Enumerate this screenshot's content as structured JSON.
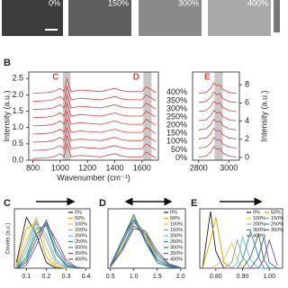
{
  "images": [
    {
      "label": "0%"
    },
    {
      "label": "150%"
    },
    {
      "label": "300%"
    },
    {
      "label": "400%"
    }
  ],
  "panel_labels": [
    "B",
    "C",
    "D",
    "E"
  ],
  "chart_data": [
    {
      "type": "line",
      "x_label": "Wavenumber (cm⁻¹)",
      "y_label": "Intensity (a.u.)",
      "x": [
        800,
        900,
        950,
        1000,
        1030,
        1050,
        1080,
        1150,
        1200,
        1300,
        1400,
        1450,
        1500,
        1600,
        1630,
        1650,
        1700
      ],
      "xlim": [
        770,
        1720
      ],
      "xticks": [
        800,
        1000,
        1200,
        1400,
        1600
      ],
      "ylim": [
        0,
        2.7
      ],
      "yticks": [
        {
          "value": 0,
          "label": "0.0"
        },
        0.5,
        {
          "value": 1,
          "label": "1.0"
        },
        1.5,
        {
          "value": 2,
          "label": "2.0"
        },
        2.5
      ],
      "highlights": [
        {
          "label": "C",
          "from": 1020,
          "to": 1075
        },
        {
          "label": "D",
          "from": 1610,
          "to": 1670
        }
      ],
      "series": [
        {
          "name": "0%",
          "color": "#e0403a",
          "values": [
            0.05,
            0.07,
            0.1,
            0.2,
            0.1,
            0.5,
            0.1,
            0.15,
            0.13,
            0.1,
            0.2,
            0.13,
            0.1,
            0.1,
            0.25,
            0.2,
            0.07
          ]
        },
        {
          "name": "50%",
          "color": "#e0403a",
          "values": [
            0.3,
            0.32,
            0.35,
            0.45,
            0.35,
            0.75,
            0.35,
            0.4,
            0.38,
            0.35,
            0.45,
            0.38,
            0.35,
            0.35,
            0.5,
            0.45,
            0.32
          ]
        },
        {
          "name": "100%",
          "color": "#e0403a",
          "values": [
            0.55,
            0.57,
            0.6,
            0.7,
            0.6,
            1.0,
            0.6,
            0.65,
            0.63,
            0.6,
            0.7,
            0.63,
            0.6,
            0.6,
            0.75,
            0.7,
            0.57
          ]
        },
        {
          "name": "150%",
          "color": "#e0403a",
          "values": [
            0.8,
            0.82,
            0.85,
            0.95,
            0.85,
            1.25,
            0.85,
            0.9,
            0.88,
            0.85,
            0.95,
            0.88,
            0.85,
            0.85,
            1.0,
            0.95,
            0.82
          ]
        },
        {
          "name": "200%",
          "color": "#e0403a",
          "values": [
            1.05,
            1.07,
            1.1,
            1.2,
            1.1,
            1.5,
            1.1,
            1.15,
            1.13,
            1.1,
            1.2,
            1.13,
            1.1,
            1.1,
            1.25,
            1.2,
            1.07
          ]
        },
        {
          "name": "250%",
          "color": "#e0403a",
          "values": [
            1.3,
            1.32,
            1.35,
            1.45,
            1.35,
            1.75,
            1.35,
            1.4,
            1.38,
            1.35,
            1.45,
            1.38,
            1.35,
            1.35,
            1.5,
            1.45,
            1.32
          ]
        },
        {
          "name": "300%",
          "color": "#e0403a",
          "values": [
            1.55,
            1.57,
            1.6,
            1.7,
            1.6,
            2.0,
            1.6,
            1.65,
            1.63,
            1.6,
            1.7,
            1.63,
            1.6,
            1.6,
            1.75,
            1.7,
            1.57
          ]
        },
        {
          "name": "350%",
          "color": "#e0403a",
          "values": [
            1.8,
            1.82,
            1.85,
            1.95,
            1.85,
            2.25,
            1.85,
            1.9,
            1.88,
            1.85,
            1.95,
            1.88,
            1.85,
            1.85,
            2.0,
            1.95,
            1.82
          ]
        },
        {
          "name": "400%",
          "color": "#e0403a",
          "values": [
            2.05,
            2.07,
            2.1,
            2.2,
            2.1,
            2.5,
            2.1,
            2.15,
            2.13,
            2.1,
            2.2,
            2.13,
            2.1,
            2.1,
            2.25,
            2.2,
            2.07
          ]
        }
      ]
    },
    {
      "type": "line",
      "y_label": "Intensity (a.u.)",
      "x": [
        2800,
        2850,
        2880,
        2900,
        2920,
        2940,
        2960,
        3000,
        3050
      ],
      "xlim": [
        2760,
        3070
      ],
      "xticks": [
        2800,
        3000
      ],
      "ylim": [
        -0.3,
        9.4
      ],
      "yticks": [
        0,
        2,
        4,
        6,
        8
      ],
      "highlights": [
        {
          "label": "E",
          "from": 2905,
          "to": 2960
        }
      ],
      "series": [
        {
          "color": "#e0403a",
          "values": [
            0.05,
            0.15,
            0.6,
            1.2,
            0.9,
            1.0,
            0.5,
            0.15,
            0.05
          ]
        },
        {
          "color": "#e0403a",
          "values": [
            1.05,
            1.15,
            1.6,
            2.2,
            1.9,
            2.0,
            1.5,
            1.15,
            1.05
          ]
        },
        {
          "color": "#e0403a",
          "values": [
            2.05,
            2.15,
            2.6,
            3.2,
            2.9,
            3.0,
            2.5,
            2.15,
            2.05
          ]
        },
        {
          "color": "#e0403a",
          "values": [
            3.05,
            3.15,
            3.6,
            4.2,
            3.9,
            4.0,
            3.5,
            3.15,
            3.05
          ]
        },
        {
          "color": "#e0403a",
          "values": [
            4.05,
            4.15,
            4.6,
            5.2,
            4.9,
            5.0,
            4.5,
            4.15,
            4.05
          ]
        },
        {
          "color": "#e0403a",
          "values": [
            5.05,
            5.15,
            5.6,
            6.2,
            5.9,
            6.0,
            5.5,
            5.15,
            5.05
          ]
        },
        {
          "color": "#e0403a",
          "values": [
            6.05,
            6.15,
            6.6,
            7.2,
            6.9,
            7.0,
            6.5,
            6.15,
            6.05
          ]
        },
        {
          "color": "#e0403a",
          "values": [
            7.05,
            7.15,
            7.6,
            8.2,
            7.9,
            8.0,
            7.5,
            7.15,
            7.05
          ]
        }
      ]
    },
    {
      "type": "line",
      "y_label": "Counts (a.u.)",
      "x": [
        0.05,
        0.1,
        0.15,
        0.2,
        0.25,
        0.3,
        0.35,
        0.4
      ],
      "xlim": [
        0.04,
        0.42
      ],
      "xticks": [
        0.1,
        0.2,
        0.3,
        0.4
      ],
      "ylim": [
        0,
        1.05
      ],
      "series": [
        {
          "name": "0%",
          "color": "#222222",
          "values": [
            0.1,
            0.9,
            0.6,
            0.1,
            0,
            0,
            0,
            0
          ]
        },
        {
          "name": "50%",
          "color": "#d9a400",
          "values": [
            0.05,
            0.7,
            0.8,
            0.2,
            0.02,
            0,
            0,
            0
          ]
        },
        {
          "name": "100%",
          "color": "#e6c84a",
          "values": [
            0.02,
            0.5,
            0.9,
            0.35,
            0.05,
            0,
            0,
            0
          ]
        },
        {
          "name": "150%",
          "color": "#999999",
          "values": [
            0.01,
            0.4,
            0.85,
            0.5,
            0.1,
            0.01,
            0,
            0
          ]
        },
        {
          "name": "200%",
          "color": "#62c0d6",
          "values": [
            0,
            0.3,
            0.8,
            0.6,
            0.15,
            0.02,
            0,
            0
          ]
        },
        {
          "name": "250%",
          "color": "#2a8fa8",
          "values": [
            0,
            0.2,
            0.7,
            0.75,
            0.25,
            0.04,
            0,
            0
          ]
        },
        {
          "name": "300%",
          "color": "#3a7d44",
          "values": [
            0,
            0.15,
            0.6,
            0.8,
            0.3,
            0.06,
            0,
            0
          ]
        },
        {
          "name": "350%",
          "color": "#3f5fbf",
          "values": [
            0,
            0.1,
            0.5,
            0.85,
            0.4,
            0.1,
            0.01,
            0
          ]
        },
        {
          "name": "400%",
          "color": "#7a4b9a",
          "values": [
            0,
            0.05,
            0.4,
            0.8,
            0.5,
            0.15,
            0.02,
            0
          ]
        }
      ]
    },
    {
      "type": "line",
      "x": [
        0.5,
        0.75,
        1.0,
        1.25,
        1.5,
        1.75,
        2.0
      ],
      "xlim": [
        0.45,
        2.1
      ],
      "xticks": [
        0.5,
        {
          "value": 1,
          "label": "1.0"
        },
        1.5,
        {
          "value": 2,
          "label": "2.0"
        }
      ],
      "ylim": [
        0,
        1.05
      ],
      "series": [
        {
          "name": "0%",
          "color": "#222222",
          "values": [
            0.05,
            0.5,
            0.9,
            0.5,
            0.1,
            0.02,
            0
          ]
        },
        {
          "name": "50%",
          "color": "#d9a400",
          "values": [
            0.05,
            0.45,
            0.85,
            0.55,
            0.15,
            0.03,
            0
          ]
        },
        {
          "name": "100%",
          "color": "#e6c84a",
          "values": [
            0.03,
            0.4,
            0.9,
            0.6,
            0.15,
            0.03,
            0
          ]
        },
        {
          "name": "150%",
          "color": "#999999",
          "values": [
            0.02,
            0.35,
            0.8,
            0.65,
            0.2,
            0.05,
            0
          ]
        },
        {
          "name": "200%",
          "color": "#62c0d6",
          "values": [
            0.02,
            0.3,
            0.85,
            0.6,
            0.2,
            0.05,
            0.01
          ]
        },
        {
          "name": "250%",
          "color": "#2a8fa8",
          "values": [
            0.05,
            0.5,
            0.95,
            0.45,
            0.1,
            0.02,
            0
          ]
        },
        {
          "name": "300%",
          "color": "#3a7d44",
          "values": [
            0.03,
            0.35,
            0.75,
            0.6,
            0.25,
            0.06,
            0.01
          ]
        },
        {
          "name": "350%",
          "color": "#3f5fbf",
          "values": [
            0.04,
            0.45,
            0.85,
            0.5,
            0.15,
            0.04,
            0
          ]
        },
        {
          "name": "400%",
          "color": "#7a4b9a",
          "values": [
            0.02,
            0.3,
            0.7,
            0.65,
            0.3,
            0.08,
            0.01
          ]
        }
      ]
    },
    {
      "type": "line",
      "x": [
        0.75,
        0.78,
        0.8,
        0.83,
        0.86,
        0.88,
        0.9,
        0.93,
        0.96,
        0.98,
        1.0,
        1.03
      ],
      "xlim": [
        0.74,
        1.05
      ],
      "xticks": [
        {
          "value": 0.8,
          "label": "0.80"
        },
        {
          "value": 0.9,
          "label": "0.90"
        },
        {
          "value": 1,
          "label": "1.00"
        }
      ],
      "ylim": [
        0,
        1.05
      ],
      "series": [
        {
          "name": "0%",
          "color": "#222222",
          "values": [
            0,
            1.0,
            0.3,
            0,
            0,
            0,
            0,
            0,
            0,
            0,
            0,
            0
          ]
        },
        {
          "name": "50%",
          "color": "#d9a400",
          "values": [
            0,
            0.5,
            0.9,
            0.1,
            0,
            0,
            0,
            0,
            0,
            0,
            0,
            0
          ]
        },
        {
          "name": "100%",
          "color": "#e6c84a",
          "values": [
            0,
            0,
            0.05,
            0.15,
            0.45,
            0.15,
            0,
            0,
            0,
            0,
            0,
            0
          ]
        },
        {
          "name": "150%",
          "color": "#999999",
          "values": [
            0,
            0,
            0,
            0,
            0.1,
            0.5,
            0.2,
            0,
            0,
            0,
            0,
            0
          ]
        },
        {
          "name": "200%",
          "color": "#62c0d6",
          "values": [
            0,
            0,
            0,
            0,
            0,
            0.1,
            0.55,
            0.15,
            0,
            0,
            0,
            0
          ]
        },
        {
          "name": "250%",
          "color": "#2a8fa8",
          "values": [
            0,
            0,
            0,
            0,
            0,
            0,
            0.15,
            0.65,
            0.2,
            0,
            0,
            0
          ]
        },
        {
          "name": "300%",
          "color": "#3a7d44",
          "values": [
            0,
            0,
            0,
            0,
            0,
            0,
            0,
            0.2,
            0.6,
            0.15,
            0,
            0
          ]
        },
        {
          "name": "350%",
          "color": "#3f5fbf",
          "values": [
            0,
            0,
            0,
            0,
            0,
            0,
            0,
            0,
            0.2,
            0.55,
            0.1,
            0
          ]
        },
        {
          "name": "400%",
          "color": "#7a4b9a",
          "values": [
            0,
            0,
            0,
            0,
            0,
            0,
            0,
            0,
            0,
            0.15,
            0.5,
            0.05
          ]
        }
      ]
    }
  ]
}
